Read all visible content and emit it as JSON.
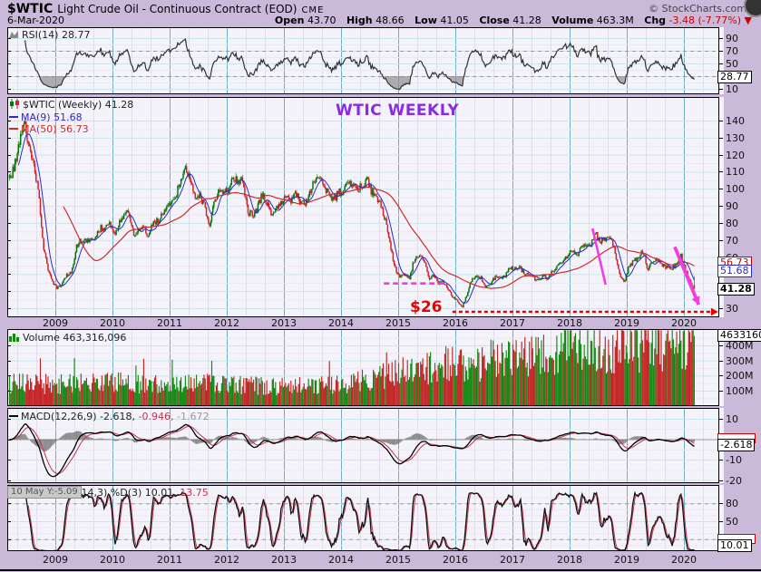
{
  "header": {
    "symbol": "$WTIC",
    "title": "Light Crude Oil - Continuous Contract (EOD)",
    "exchange": "CME",
    "date": "6-Mar-2020",
    "copyright": "© StockCharts.com",
    "quote": {
      "open_label": "Open",
      "open": "43.70",
      "high_label": "High",
      "high": "48.66",
      "low_label": "Low",
      "low": "41.05",
      "close_label": "Close",
      "close": "41.28",
      "volume_label": "Volume",
      "volume": "463.3M",
      "chg_label": "Chg",
      "chg": "-3.48 (-7.77%)",
      "chg_arrow": "▼"
    }
  },
  "colors": {
    "background": "#CBB9DA",
    "plot_bg": "#F5F3FA",
    "grid_major_v": "#6FAEC1",
    "grid_minor_v": "#E4DBEF",
    "grid_major_h": "#C9E5EB",
    "grid_minor_h": "#ECE6F4",
    "candle_up": "#00790C",
    "candle_down": "#D1232A",
    "ma9": "#2A2AC8",
    "ma50": "#CC2B2B",
    "volume_up": "#0F8A0F",
    "volume_down": "#C32222",
    "annotation_red": "#E80000",
    "annotation_magenta": "#F23CE0",
    "watermark_purple": "#8A2BE2",
    "histogram": "#7A7A7A",
    "threshold_dash": "#999999"
  },
  "panels": {
    "rsi": {
      "legend": "RSI(14) 28.77",
      "boxed_label": "28.77",
      "axis": [
        {
          "v": 90,
          "label": "90"
        },
        {
          "v": 70,
          "label": "70"
        },
        {
          "v": 50,
          "label": "50"
        },
        {
          "v": 10,
          "label": "10"
        }
      ]
    },
    "price": {
      "legend_symbol": "$WTIC (Weekly) 41.28",
      "legend_ma9": "MA(9) 51.68",
      "legend_ma50": "MA(50) 56.73",
      "boxed_ma50": "56.73",
      "boxed_ma9": "51.68",
      "boxed_close": "41.28",
      "watermark": "WTIC WEEKLY",
      "support_text": "$26",
      "axis": [
        {
          "v": 140,
          "label": "140"
        },
        {
          "v": 130,
          "label": "130"
        },
        {
          "v": 120,
          "label": "120"
        },
        {
          "v": 110,
          "label": "110"
        },
        {
          "v": 100,
          "label": "100"
        },
        {
          "v": 90,
          "label": "90"
        },
        {
          "v": 80,
          "label": "80"
        },
        {
          "v": 70,
          "label": "70"
        },
        {
          "v": 60,
          "label": "60"
        },
        {
          "v": 30,
          "label": "30"
        }
      ]
    },
    "volume": {
      "legend": "Volume 463,316,096",
      "boxed_label": "463316096",
      "axis": [
        {
          "v": 400,
          "label": "400M"
        },
        {
          "v": 300,
          "label": "300M"
        },
        {
          "v": 200,
          "label": "200M"
        },
        {
          "v": 100,
          "label": "100M"
        }
      ]
    },
    "macd": {
      "legend_name": "MACD(12,26,9)",
      "legend_v1": "-2.618,",
      "legend_v2": "-0.946,",
      "legend_v3": "-1.672",
      "boxed_label": "-2.618",
      "axis": [
        {
          "v": 10,
          "label": "10"
        },
        {
          "v": -10,
          "label": "-10"
        },
        {
          "v": -20,
          "label": "-20"
        }
      ]
    },
    "stoch": {
      "tooltip": "10 May Y:-5.09",
      "legend_name": "K(14,3) %D(3)",
      "legend_v1": "10.01,",
      "legend_v2": "13.75",
      "boxed_label": "10.01",
      "axis": [
        {
          "v": 80,
          "label": "80"
        },
        {
          "v": 50,
          "label": "50"
        },
        {
          "v": 20,
          "label": "20"
        }
      ]
    }
  },
  "x_axis": {
    "years": [
      "2009",
      "2010",
      "2011",
      "2012",
      "2013",
      "2014",
      "2015",
      "2016",
      "2017",
      "2018",
      "2019",
      "2020"
    ]
  },
  "chart_data": [
    {
      "panel": "price",
      "type": "candlestick",
      "timeframe": "weekly",
      "ylim": [
        26,
        148
      ],
      "x_start": 2008.2,
      "x_end": 2020.19,
      "last": {
        "open": 43.7,
        "high": 48.66,
        "low": 41.05,
        "close": 41.28
      },
      "ma9_last": 51.68,
      "ma50_last": 56.73,
      "monthly_closes": {
        "start": 2008.2,
        "step": 0.083333,
        "values": [
          106,
          113,
          127,
          140,
          124,
          115,
          100,
          68,
          54,
          45,
          42,
          44,
          49,
          51,
          66,
          70,
          69,
          70,
          70,
          77,
          77,
          79,
          73,
          80,
          84,
          86,
          74,
          76,
          79,
          72,
          80,
          81,
          84,
          91,
          92,
          97,
          107,
          114,
          103,
          95,
          96,
          89,
          79,
          93,
          100,
          99,
          98,
          107,
          103,
          105,
          86,
          85,
          88,
          97,
          92,
          86,
          89,
          92,
          97,
          92,
          97,
          93,
          92,
          97,
          105,
          108,
          102,
          96,
          93,
          98,
          97,
          103,
          101,
          100,
          103,
          105,
          98,
          96,
          91,
          81,
          66,
          53,
          48,
          50,
          48,
          59,
          60,
          59,
          47,
          49,
          45,
          46,
          42,
          37,
          34,
          30,
          38,
          46,
          49,
          48,
          42,
          45,
          48,
          47,
          49,
          54,
          53,
          54,
          51,
          49,
          48,
          46,
          50,
          47,
          52,
          54,
          57,
          60,
          65,
          61,
          65,
          68,
          67,
          74,
          69,
          70,
          73,
          65,
          51,
          45,
          54,
          57,
          60,
          64,
          53,
          58,
          58,
          55,
          54,
          54,
          55,
          61,
          52,
          45,
          41.28
        ]
      },
      "annotations": {
        "support_level": 26,
        "magenta_dash": {
          "price": 44.5,
          "t1": 2014.75,
          "t2": 2015.85
        },
        "support_arrow": {
          "price": 27.9,
          "t1": 2015.95,
          "t2": 2020.6
        },
        "arrow_small": {
          "t1": 2018.4,
          "p1": 76.8,
          "t2": 2018.63,
          "p2": 43.8
        },
        "arrow_big": {
          "t1": 2019.84,
          "p1": 66.0,
          "t2": 2020.26,
          "p2": 32.0
        }
      }
    },
    {
      "panel": "rsi",
      "type": "line",
      "period": 14,
      "last": 28.77,
      "range": [
        0,
        100
      ],
      "thresholds": [
        70,
        30
      ]
    },
    {
      "panel": "volume",
      "type": "bar",
      "last": 463316096,
      "unit": "millions",
      "trend_anchors": [
        [
          2008.2,
          150
        ],
        [
          2009,
          140
        ],
        [
          2010,
          150
        ],
        [
          2011,
          145
        ],
        [
          2012,
          135
        ],
        [
          2013,
          125
        ],
        [
          2014,
          140
        ],
        [
          2014.8,
          190
        ],
        [
          2015.5,
          250
        ],
        [
          2016.5,
          290
        ],
        [
          2017.5,
          310
        ],
        [
          2018.3,
          390
        ],
        [
          2019,
          370
        ],
        [
          2019.6,
          390
        ],
        [
          2020.1,
          430
        ],
        [
          2020.19,
          463
        ]
      ]
    },
    {
      "panel": "macd",
      "type": "line+histogram",
      "params": [
        12,
        26,
        9
      ],
      "last": [
        -2.618,
        -0.946,
        -1.672
      ],
      "range": [
        10,
        -26
      ]
    },
    {
      "panel": "stoch",
      "type": "line",
      "params": "%K(14,3) %D(3)",
      "last": [
        10.01,
        13.75
      ],
      "range": [
        0,
        100
      ],
      "thresholds": [
        80,
        20
      ]
    }
  ]
}
